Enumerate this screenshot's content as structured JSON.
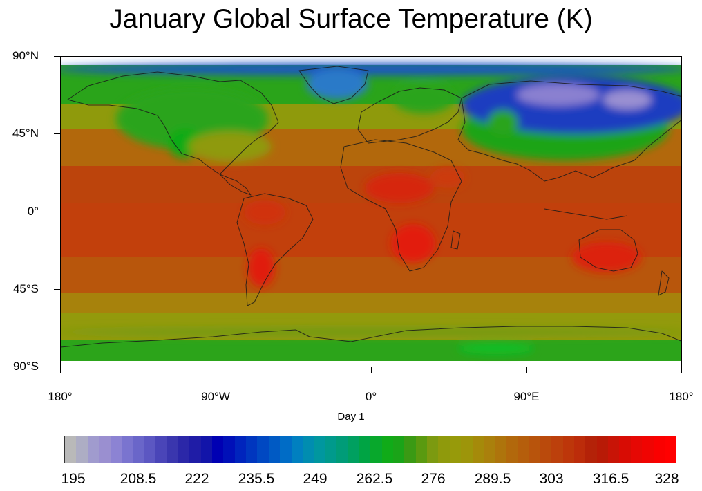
{
  "title": "January Global Surface Temperature (K)",
  "subtitle": "Day 1",
  "lat_labels": [
    "90°N",
    "45°N",
    "0°",
    "45°S",
    "90°S"
  ],
  "lon_labels": [
    "180°",
    "90°W",
    "0°",
    "90°E",
    "180°"
  ],
  "colorbar": {
    "labels": [
      "195",
      "208.5",
      "222",
      "235.5",
      "249",
      "262.5",
      "276",
      "289.5",
      "303",
      "316.5",
      "328"
    ],
    "colors": [
      "#b9b9b9",
      "#adadc4",
      "#a09bce",
      "#9a8fd0",
      "#8c83d3",
      "#7a74cf",
      "#6a66c9",
      "#5c57c2",
      "#4a45b8",
      "#3a36ae",
      "#2b27a8",
      "#1f1ca6",
      "#1214a9",
      "#0000b3",
      "#0010b8",
      "#0024bd",
      "#0036bf",
      "#0048c2",
      "#005ac4",
      "#006cc6",
      "#0080c0",
      "#008db0",
      "#00979f",
      "#009a8c",
      "#009c78",
      "#00a060",
      "#00a444",
      "#08a82c",
      "#10ab18",
      "#1aa418",
      "#3a9a14",
      "#5a9a10",
      "#7c9a10",
      "#8f9a0c",
      "#979a0a",
      "#9d950a",
      "#a58a0a",
      "#aa800c",
      "#ae740c",
      "#b2680c",
      "#b55e0c",
      "#b8540c",
      "#ba4a0c",
      "#bc400c",
      "#bd360a",
      "#bc2c0a",
      "#b42208",
      "#b81a06",
      "#c81406",
      "#d80c04",
      "#e60804",
      "#f00402",
      "#fa0000",
      "#ff0000"
    ]
  },
  "map": {
    "projection": "cylindrical-equidistant",
    "lon_range": [
      -180,
      180
    ],
    "lat_range": [
      -90,
      90
    ],
    "colors": {
      "tropics": "#c44a0c",
      "warm": "#b95a0c",
      "mid": "#a3860c",
      "cool": "#8f990c",
      "green": "#2ca41a",
      "blue": "#1a3ec0",
      "violet": "#7f72cf",
      "hot": "#e21e08"
    }
  }
}
